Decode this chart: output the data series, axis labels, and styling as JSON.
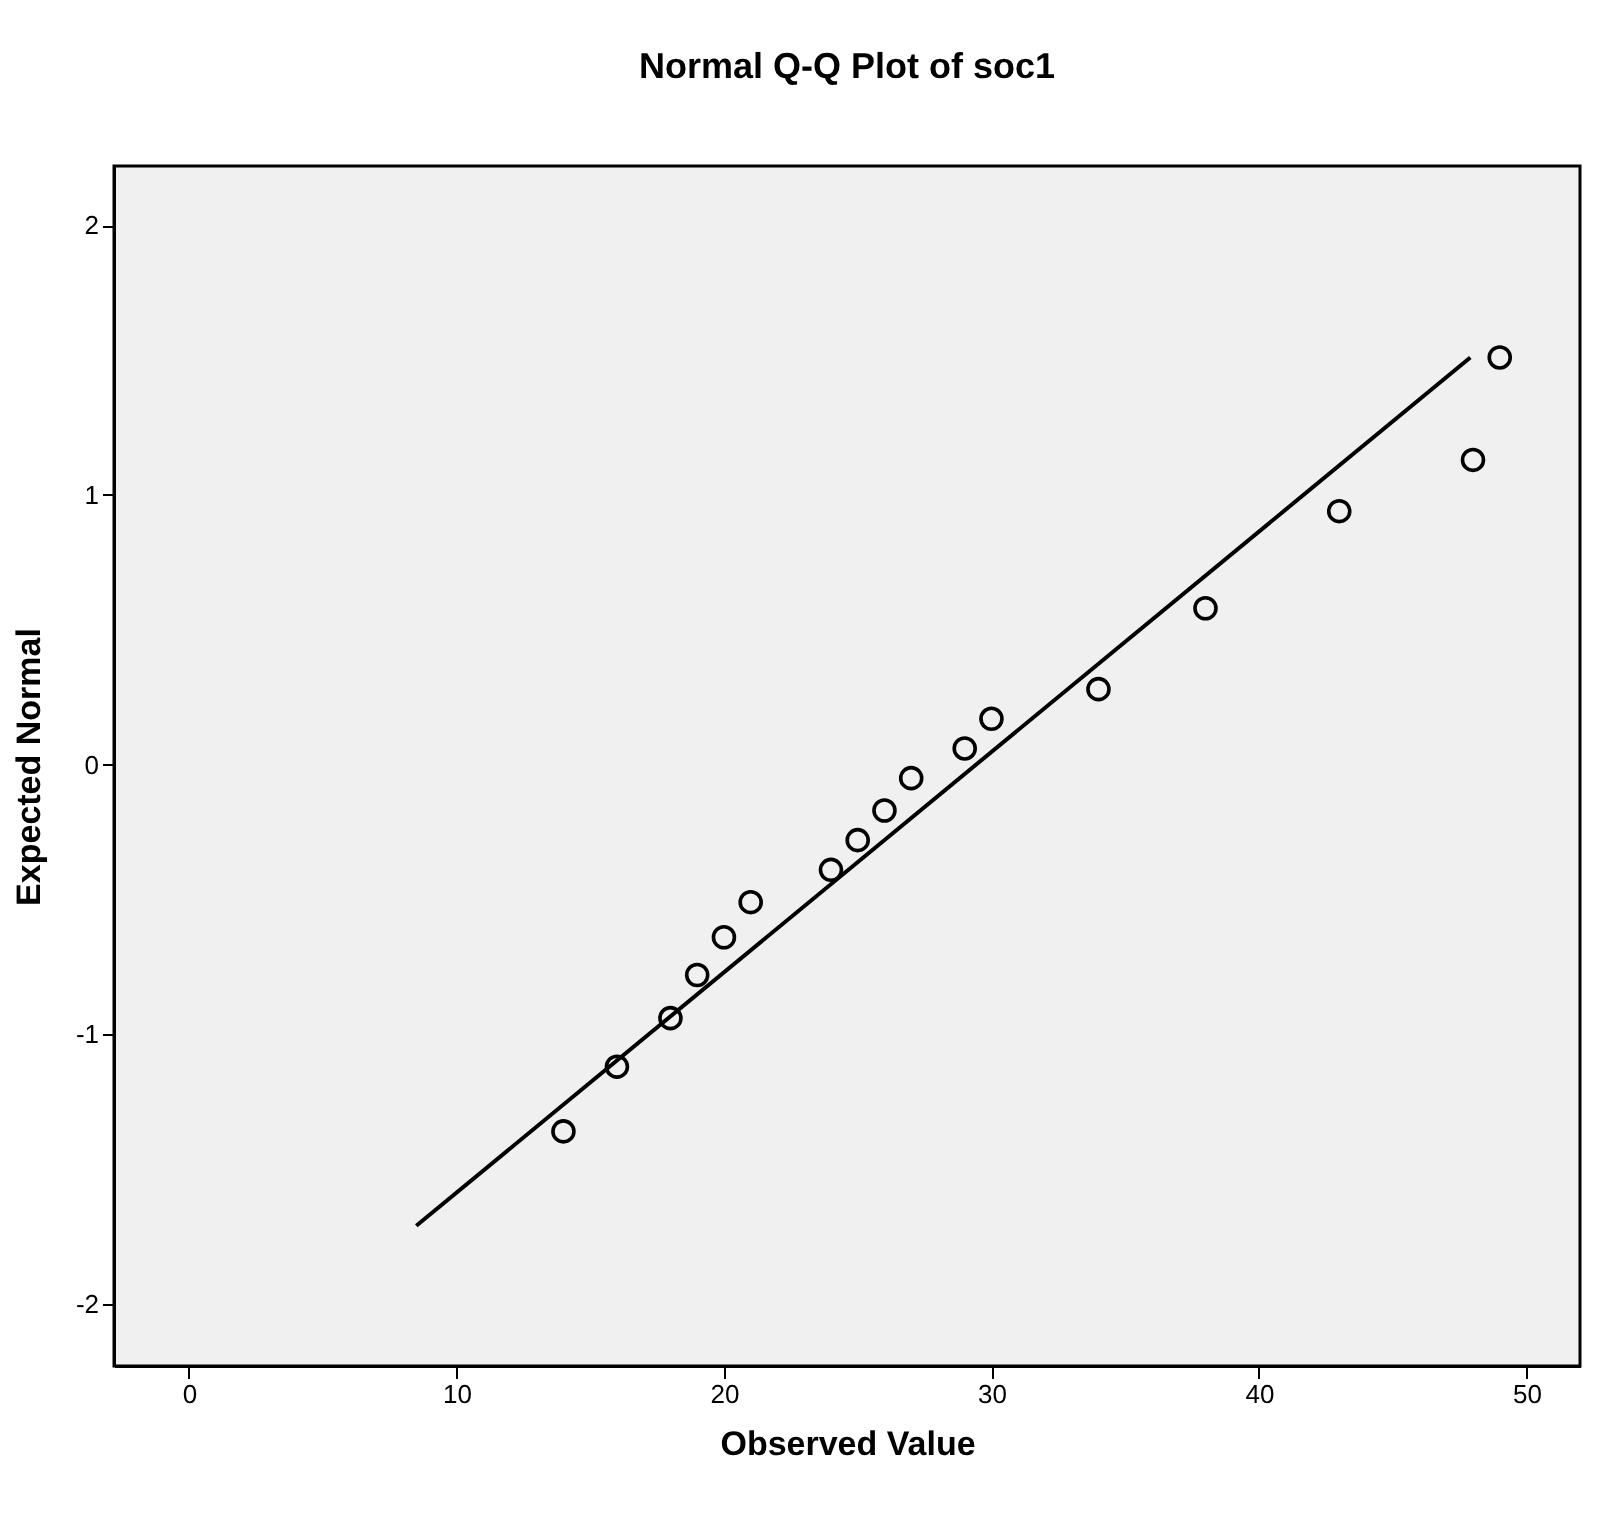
{
  "chart_data": {
    "type": "scatter",
    "title": "Normal Q-Q Plot of soc1",
    "xlabel": "Observed Value",
    "ylabel": "Expected Normal",
    "x": [
      14,
      16,
      18,
      19,
      20,
      21,
      24,
      25,
      26,
      27,
      29,
      30,
      34,
      38,
      43,
      48,
      49
    ],
    "series": [
      {
        "color": "#000000",
        "values": [
          -1.36,
          -1.12,
          -0.94,
          -0.78,
          -0.64,
          -0.51,
          -0.39,
          -0.28,
          -0.17,
          -0.05,
          0.06,
          0.17,
          0.28,
          0.58,
          0.94,
          1.13,
          1.51
        ],
        "marker": "circle"
      },
      {
        "type": "line",
        "color": "#000000",
        "x": [
          8.5,
          47.9
        ],
        "values": [
          -1.71,
          1.51
        ]
      }
    ],
    "xlim": [
      -2.8,
      52
    ],
    "xticks": [
      0,
      10,
      20,
      30,
      40,
      50
    ],
    "ylim": [
      -2.23,
      2.22
    ],
    "yticks": [
      -2,
      -1,
      0,
      1,
      2
    ],
    "grid": false
  }
}
